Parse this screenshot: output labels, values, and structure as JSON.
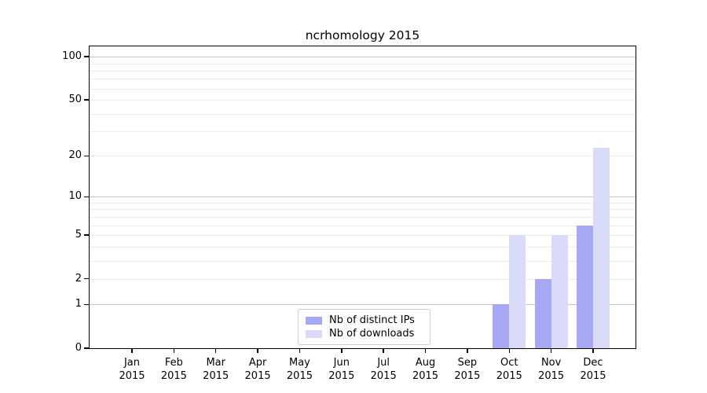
{
  "title": "ncrhomology 2015",
  "chart_data": {
    "type": "bar",
    "title": "ncrhomology 2015",
    "x_axis": {
      "categories": [
        "Jan",
        "Feb",
        "Mar",
        "Apr",
        "May",
        "Jun",
        "Jul",
        "Aug",
        "Sep",
        "Oct",
        "Nov",
        "Dec"
      ],
      "year": "2015"
    },
    "y_axis": {
      "tick_values": [
        0,
        1,
        2,
        5,
        10,
        20,
        50,
        100
      ],
      "tick_labels": [
        "0",
        "1",
        "2",
        "5",
        "10",
        "20",
        "50",
        "100"
      ],
      "scale": "log10(1+x)",
      "range": [
        0,
        118
      ],
      "major_gridlines": [
        1,
        10,
        100
      ],
      "minor_gridlines": [
        2,
        3,
        4,
        5,
        6,
        7,
        8,
        9,
        20,
        30,
        40,
        50,
        60,
        70,
        80,
        90
      ],
      "grid": "on"
    },
    "series": [
      {
        "name": "Nb of distinct IPs",
        "color": "#a8a8f4",
        "values": [
          0,
          0,
          0,
          0,
          0,
          0,
          0,
          0,
          0,
          1,
          2,
          6
        ]
      },
      {
        "name": "Nb of downloads",
        "color": "#dadaf9",
        "values": [
          0,
          0,
          0,
          0,
          0,
          0,
          0,
          0,
          0,
          5,
          5,
          23
        ]
      }
    ],
    "legend": {
      "position": "bottom-center",
      "entries": [
        "Nb of distinct IPs",
        "Nb of downloads"
      ]
    }
  }
}
